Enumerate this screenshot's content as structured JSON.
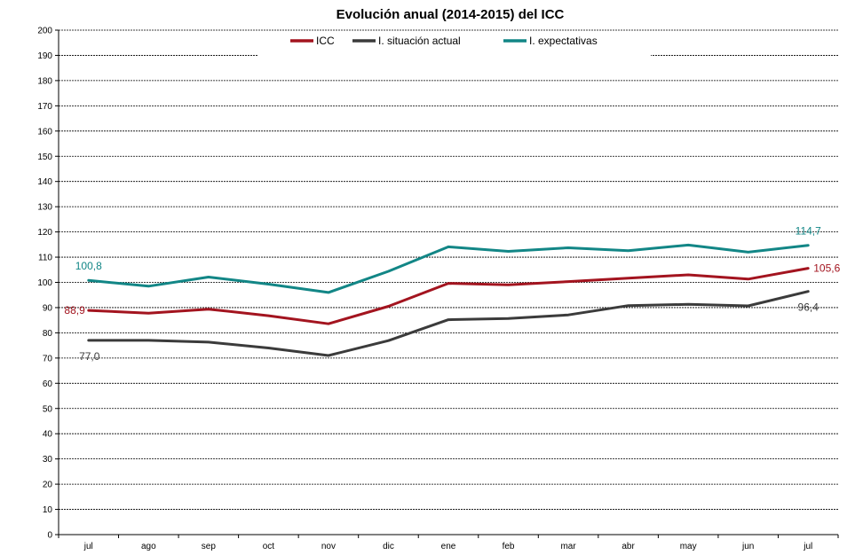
{
  "chart_data": {
    "type": "line",
    "title": "Evolución anual (2014-2015) del ICC",
    "categories": [
      "jul",
      "ago",
      "sep",
      "oct",
      "nov",
      "dic",
      "ene",
      "feb",
      "mar",
      "abr",
      "may",
      "jun",
      "jul"
    ],
    "ylim": [
      0,
      200
    ],
    "ytick_step": 10,
    "grid": true,
    "legend_position": "top",
    "series": [
      {
        "name": "ICC",
        "color": "#a3141f",
        "values": [
          88.9,
          87.8,
          89.4,
          86.8,
          83.6,
          90.5,
          99.6,
          99.0,
          100.3,
          101.7,
          103.0,
          101.3,
          105.6
        ]
      },
      {
        "name": "I. situación actual",
        "color": "#3b3b3b",
        "values": [
          77.0,
          77.0,
          76.3,
          74.0,
          71.0,
          76.9,
          85.2,
          85.7,
          87.1,
          90.8,
          91.3,
          90.7,
          96.4
        ]
      },
      {
        "name": "I. expectativas",
        "color": "#128686",
        "values": [
          100.8,
          98.5,
          102.1,
          99.3,
          96.0,
          104.4,
          114.1,
          112.3,
          113.7,
          112.6,
          114.8,
          112.0,
          114.7
        ]
      }
    ],
    "data_labels": [
      {
        "series": 0,
        "index": 0,
        "text": "88,9"
      },
      {
        "series": 0,
        "index": 12,
        "text": "105,6"
      },
      {
        "series": 1,
        "index": 0,
        "text": "77,0"
      },
      {
        "series": 1,
        "index": 12,
        "text": "96,4"
      },
      {
        "series": 2,
        "index": 0,
        "text": "100,8"
      },
      {
        "series": 2,
        "index": 12,
        "text": "114,7"
      }
    ]
  }
}
